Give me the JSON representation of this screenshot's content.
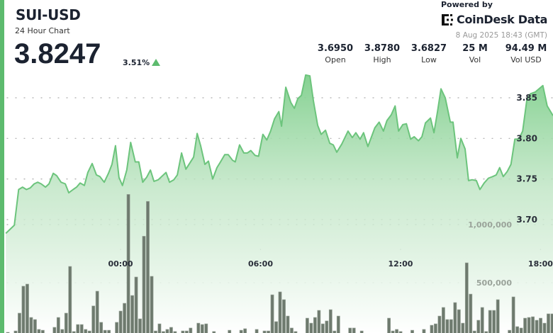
{
  "header": {
    "title": "SUI-USD",
    "subtitle": "24 Hour Chart",
    "price": "3.8247",
    "change": "3.51%",
    "change_direction": "up",
    "powered_by": "Powered by",
    "brand": "CoinDesk Data",
    "timestamp": "8 Aug 2025 18:43 (GMT)"
  },
  "stats": [
    {
      "value": "3.6950",
      "label": "Open"
    },
    {
      "value": "3.8780",
      "label": "High"
    },
    {
      "value": "3.6827",
      "label": "Low"
    },
    {
      "value": "25 M",
      "label": "Vol"
    },
    {
      "value": "94.49 M",
      "label": "Vol USD"
    }
  ],
  "colors": {
    "accent": "#5dbb6e",
    "line": "#6cc47c",
    "volume_bar": "#6e7a6e"
  },
  "chart_data": {
    "type": "area",
    "grid": "dotted horizontal",
    "x_ticks": [
      "00:00",
      "06:00",
      "12:00",
      "18:00"
    ],
    "price_ticks": [
      "3.70",
      "3.75",
      "3.80",
      "3.85"
    ],
    "volume_ticks": [
      "500,000",
      "1,000,000"
    ],
    "price_series": [
      [
        "19:05",
        3.683
      ],
      [
        "19:27",
        3.693
      ],
      [
        "19:38",
        3.737
      ],
      [
        "19:48",
        3.74
      ],
      [
        "19:58",
        3.737
      ],
      [
        "20:08",
        3.739
      ],
      [
        "20:18",
        3.744
      ],
      [
        "20:27",
        3.746
      ],
      [
        "20:36",
        3.744
      ],
      [
        "20:47",
        3.74
      ],
      [
        "20:56",
        3.744
      ],
      [
        "21:07",
        3.757
      ],
      [
        "21:16",
        3.754
      ],
      [
        "21:27",
        3.746
      ],
      [
        "21:38",
        3.744
      ],
      [
        "21:47",
        3.733
      ],
      [
        "21:58",
        3.737
      ],
      [
        "22:07",
        3.74
      ],
      [
        "22:16",
        3.745
      ],
      [
        "22:27",
        3.742
      ],
      [
        "22:36",
        3.758
      ],
      [
        "22:47",
        3.769
      ],
      [
        "22:58",
        3.755
      ],
      [
        "23:07",
        3.753
      ],
      [
        "23:18",
        3.746
      ],
      [
        "23:29",
        3.757
      ],
      [
        "23:38",
        3.768
      ],
      [
        "23:47",
        3.791
      ],
      [
        "23:56",
        3.752
      ],
      [
        "00:05",
        3.742
      ],
      [
        "00:16",
        3.761
      ],
      [
        "00:26",
        3.795
      ],
      [
        "00:38",
        3.771
      ],
      [
        "00:47",
        3.771
      ],
      [
        "00:57",
        3.746
      ],
      [
        "01:07",
        3.752
      ],
      [
        "01:17",
        3.761
      ],
      [
        "01:26",
        3.747
      ],
      [
        "01:37",
        3.749
      ],
      [
        "01:57",
        3.758
      ],
      [
        "02:06",
        3.746
      ],
      [
        "02:17",
        3.749
      ],
      [
        "02:26",
        3.755
      ],
      [
        "02:37",
        3.782
      ],
      [
        "02:48",
        3.762
      ],
      [
        "03:08",
        3.777
      ],
      [
        "03:17",
        3.806
      ],
      [
        "03:26",
        3.791
      ],
      [
        "03:37",
        3.768
      ],
      [
        "03:46",
        3.772
      ],
      [
        "03:57",
        3.75
      ],
      [
        "04:08",
        3.764
      ],
      [
        "04:17",
        3.771
      ],
      [
        "04:28",
        3.78
      ],
      [
        "04:37",
        3.78
      ],
      [
        "04:48",
        3.773
      ],
      [
        "04:55",
        3.771
      ],
      [
        "05:06",
        3.792
      ],
      [
        "05:17",
        3.782
      ],
      [
        "05:26",
        3.782
      ],
      [
        "05:35",
        3.785
      ],
      [
        "05:46",
        3.779
      ],
      [
        "05:55",
        3.778
      ],
      [
        "06:06",
        3.805
      ],
      [
        "06:16",
        3.798
      ],
      [
        "06:26",
        3.809
      ],
      [
        "06:36",
        3.824
      ],
      [
        "06:47",
        3.833
      ],
      [
        "06:54",
        3.815
      ],
      [
        "07:05",
        3.863
      ],
      [
        "07:18",
        3.844
      ],
      [
        "07:27",
        3.837
      ],
      [
        "07:36",
        3.849
      ],
      [
        "07:45",
        3.853
      ],
      [
        "07:56",
        3.878
      ],
      [
        "08:07",
        3.877
      ],
      [
        "08:16",
        3.846
      ],
      [
        "08:27",
        3.816
      ],
      [
        "08:36",
        3.805
      ],
      [
        "08:47",
        3.81
      ],
      [
        "08:58",
        3.794
      ],
      [
        "09:07",
        3.792
      ],
      [
        "09:16",
        3.783
      ],
      [
        "09:29",
        3.793
      ],
      [
        "09:45",
        3.809
      ],
      [
        "09:56",
        3.801
      ],
      [
        "10:05",
        3.807
      ],
      [
        "10:16",
        3.799
      ],
      [
        "10:25",
        3.807
      ],
      [
        "10:36",
        3.79
      ],
      [
        "10:54",
        3.813
      ],
      [
        "11:05",
        3.82
      ],
      [
        "11:16",
        3.809
      ],
      [
        "11:25",
        3.822
      ],
      [
        "11:36",
        3.829
      ],
      [
        "11:46",
        3.84
      ],
      [
        "11:55",
        3.809
      ],
      [
        "12:06",
        3.817
      ],
      [
        "12:15",
        3.818
      ],
      [
        "12:26",
        3.799
      ],
      [
        "12:35",
        3.802
      ],
      [
        "12:46",
        3.797
      ],
      [
        "12:55",
        3.802
      ],
      [
        "13:04",
        3.819
      ],
      [
        "13:17",
        3.825
      ],
      [
        "13:26",
        3.807
      ],
      [
        "13:35",
        3.833
      ],
      [
        "13:44",
        3.861
      ],
      [
        "13:55",
        3.85
      ],
      [
        "14:08",
        3.82
      ],
      [
        "14:15",
        3.82
      ],
      [
        "14:26",
        3.776
      ],
      [
        "14:35",
        3.8
      ],
      [
        "14:46",
        3.787
      ],
      [
        "14:55",
        3.748
      ],
      [
        "15:04",
        3.749
      ],
      [
        "15:15",
        3.748
      ],
      [
        "15:24",
        3.737
      ],
      [
        "15:35",
        3.745
      ],
      [
        "15:46",
        3.751
      ],
      [
        "15:57",
        3.753
      ],
      [
        "16:06",
        3.755
      ],
      [
        "16:15",
        3.764
      ],
      [
        "16:24",
        3.753
      ],
      [
        "16:34",
        3.759
      ],
      [
        "16:44",
        3.768
      ],
      [
        "16:54",
        3.799
      ],
      [
        "17:04",
        3.799
      ],
      [
        "17:14",
        3.809
      ],
      [
        "17:25",
        3.848
      ],
      [
        "17:34",
        3.855
      ],
      [
        "17:46",
        3.857
      ],
      [
        "18:06",
        3.865
      ],
      [
        "18:17",
        3.84
      ],
      [
        "18:32",
        3.828
      ]
    ],
    "volume_series": [
      [
        "19:10",
        73000
      ],
      [
        "19:20",
        20000
      ],
      [
        "19:30",
        85000
      ],
      [
        "19:40",
        238000
      ],
      [
        "19:50",
        470000
      ],
      [
        "20:00",
        488000
      ],
      [
        "20:10",
        201000
      ],
      [
        "20:20",
        183000
      ],
      [
        "20:30",
        98000
      ],
      [
        "20:40",
        91000
      ],
      [
        "21:10",
        116000
      ],
      [
        "21:20",
        201000
      ],
      [
        "21:30",
        98000
      ],
      [
        "21:40",
        238000
      ],
      [
        "21:50",
        640000
      ],
      [
        "22:00",
        80000
      ],
      [
        "22:10",
        140000
      ],
      [
        "22:20",
        140000
      ],
      [
        "22:30",
        98000
      ],
      [
        "22:40",
        85000
      ],
      [
        "22:50",
        300000
      ],
      [
        "23:00",
        427000
      ],
      [
        "23:10",
        159000
      ],
      [
        "23:20",
        91000
      ],
      [
        "23:30",
        91000
      ],
      [
        "23:50",
        159000
      ],
      [
        "00:00",
        256000
      ],
      [
        "00:10",
        323000
      ],
      [
        "00:20",
        1260000
      ],
      [
        "00:30",
        390000
      ],
      [
        "00:40",
        549000
      ],
      [
        "00:50",
        189000
      ],
      [
        "01:00",
        900000
      ],
      [
        "01:10",
        1200000
      ],
      [
        "01:20",
        555000
      ],
      [
        "01:30",
        85000
      ],
      [
        "01:40",
        146000
      ],
      [
        "01:50",
        80000
      ],
      [
        "02:00",
        98000
      ],
      [
        "02:10",
        116000
      ],
      [
        "02:20",
        80000
      ],
      [
        "02:40",
        85000
      ],
      [
        "02:50",
        85000
      ],
      [
        "03:00",
        110000
      ],
      [
        "03:20",
        152000
      ],
      [
        "03:30",
        140000
      ],
      [
        "03:40",
        146000
      ],
      [
        "04:00",
        80000
      ],
      [
        "04:40",
        91000
      ],
      [
        "05:10",
        91000
      ],
      [
        "05:20",
        104000
      ],
      [
        "05:50",
        98000
      ],
      [
        "06:10",
        85000
      ],
      [
        "06:20",
        85000
      ],
      [
        "06:30",
        396000
      ],
      [
        "06:40",
        165000
      ],
      [
        "06:50",
        421000
      ],
      [
        "07:00",
        354000
      ],
      [
        "07:10",
        213000
      ],
      [
        "07:20",
        110000
      ],
      [
        "07:30",
        80000
      ],
      [
        "08:00",
        195000
      ],
      [
        "08:10",
        152000
      ],
      [
        "08:20",
        201000
      ],
      [
        "08:30",
        262000
      ],
      [
        "08:40",
        146000
      ],
      [
        "08:50",
        171000
      ],
      [
        "09:00",
        268000
      ],
      [
        "09:10",
        85000
      ],
      [
        "09:20",
        213000
      ],
      [
        "09:50",
        110000
      ],
      [
        "10:00",
        110000
      ],
      [
        "10:20",
        85000
      ],
      [
        "11:30",
        195000
      ],
      [
        "11:40",
        85000
      ],
      [
        "11:50",
        98000
      ],
      [
        "12:00",
        80000
      ],
      [
        "12:30",
        91000
      ],
      [
        "13:00",
        98000
      ],
      [
        "13:20",
        134000
      ],
      [
        "13:30",
        146000
      ],
      [
        "13:40",
        213000
      ],
      [
        "13:50",
        287000
      ],
      [
        "14:00",
        183000
      ],
      [
        "14:10",
        183000
      ],
      [
        "14:20",
        329000
      ],
      [
        "14:30",
        268000
      ],
      [
        "14:40",
        152000
      ],
      [
        "14:50",
        671000
      ],
      [
        "15:00",
        402000
      ],
      [
        "15:10",
        85000
      ],
      [
        "15:20",
        177000
      ],
      [
        "15:30",
        287000
      ],
      [
        "15:40",
        80000
      ],
      [
        "15:50",
        262000
      ],
      [
        "16:00",
        262000
      ],
      [
        "16:10",
        354000
      ],
      [
        "16:40",
        91000
      ],
      [
        "16:50",
        378000
      ],
      [
        "17:00",
        122000
      ],
      [
        "17:10",
        110000
      ],
      [
        "17:20",
        195000
      ],
      [
        "17:30",
        201000
      ],
      [
        "17:40",
        207000
      ],
      [
        "17:50",
        177000
      ],
      [
        "18:00",
        195000
      ],
      [
        "18:10",
        152000
      ],
      [
        "18:20",
        232000
      ],
      [
        "18:30",
        232000
      ]
    ]
  }
}
